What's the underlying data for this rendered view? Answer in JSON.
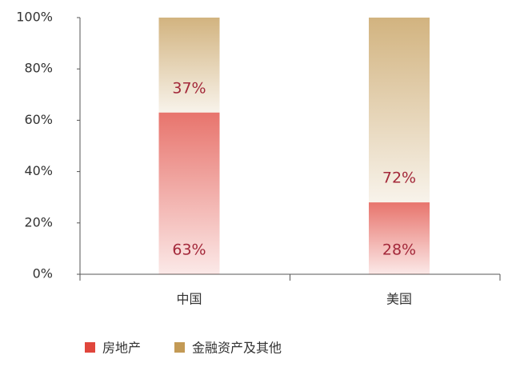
{
  "chart_data": {
    "type": "stacked_bar",
    "categories": [
      "中国",
      "美国"
    ],
    "series": [
      {
        "name": "房地产",
        "color": "#e0463c",
        "values": [
          63,
          28
        ],
        "value_labels": [
          "63%",
          "28%"
        ]
      },
      {
        "name": "金融资产及其他",
        "color": "#c39a55",
        "values": [
          37,
          72
        ],
        "value_labels": [
          "37%",
          "72%"
        ]
      }
    ],
    "ylim": [
      0,
      100
    ],
    "yticks": [
      {
        "value": 0,
        "label": "0%"
      },
      {
        "value": 20,
        "label": "20%"
      },
      {
        "value": 40,
        "label": "40%"
      },
      {
        "value": 60,
        "label": "60%"
      },
      {
        "value": 80,
        "label": "80%"
      },
      {
        "value": 100,
        "label": "100%"
      }
    ],
    "legend": "bottom-left"
  }
}
